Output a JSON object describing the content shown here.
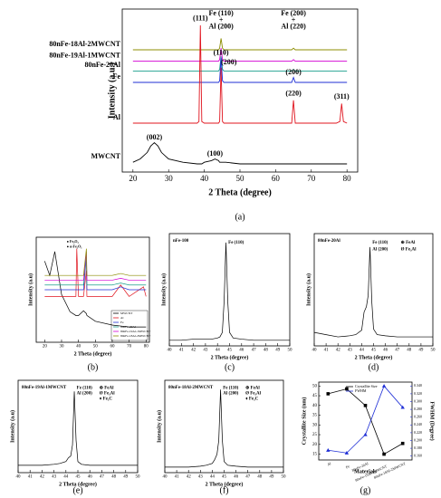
{
  "chart_data": [
    {
      "type": "line",
      "caption": "(a)",
      "x_label": "2 Theta (degree)",
      "y_label": "Intensity (a.u.)",
      "xlim": [
        17,
        83
      ],
      "xticks": [
        20,
        30,
        40,
        50,
        60,
        70,
        80
      ],
      "ylim": [
        0,
        100
      ],
      "x": [
        20,
        22,
        24,
        25,
        26,
        27,
        28,
        30,
        34,
        38,
        38.5,
        38.9,
        39.3,
        40,
        42,
        43,
        44,
        44.3,
        44.7,
        45.1,
        45.5,
        46,
        50,
        55,
        60,
        64.5,
        65,
        65.5,
        70,
        77,
        78,
        78.5,
        79,
        80
      ],
      "series": [
        {
          "name": "80nFe-18Al-2MWCNT",
          "color": "#8c8c00",
          "values": [
            75,
            75,
            75,
            75,
            75,
            75,
            75,
            75,
            75,
            75,
            75,
            75,
            75,
            75,
            75,
            75,
            75,
            76,
            82,
            76,
            75,
            75,
            75,
            75,
            75,
            75,
            76,
            75,
            75,
            75,
            75,
            75,
            75,
            75
          ]
        },
        {
          "name": "80nFe-19Al-1MWCNT",
          "color": "#d400d4",
          "values": [
            68,
            68,
            68,
            68,
            68,
            68,
            68,
            68,
            68,
            68,
            68,
            68,
            68,
            68,
            68,
            68,
            68,
            69,
            76,
            69,
            68,
            68,
            68,
            68,
            68,
            68,
            69,
            68,
            68,
            68,
            68,
            68,
            68,
            68
          ]
        },
        {
          "name": "80nFe-20Al",
          "color": "#1a9e8c",
          "values": [
            62,
            62,
            62,
            62,
            62,
            62,
            62,
            62,
            62,
            62,
            62,
            62,
            62,
            62,
            62,
            62,
            62,
            63,
            71,
            63,
            62,
            62,
            62,
            62,
            62,
            62,
            63,
            62,
            62,
            62,
            62,
            62,
            62,
            62
          ]
        },
        {
          "name": "Fe",
          "color": "#1f2fd6",
          "values": [
            55,
            55,
            55,
            55,
            55,
            55,
            55,
            55,
            55,
            55,
            55,
            55,
            55,
            55,
            55,
            55,
            55,
            56,
            70,
            56,
            55,
            55,
            55,
            55,
            55,
            55,
            58,
            55,
            55,
            55,
            55,
            55,
            55,
            55
          ]
        },
        {
          "name": "Al",
          "color": "#e0141e",
          "values": [
            30,
            30,
            30,
            30,
            30,
            30,
            30,
            30,
            30,
            30,
            31,
            90,
            31,
            30,
            30,
            30,
            30,
            31,
            64,
            31,
            30,
            30,
            30,
            30,
            30,
            30,
            44,
            30,
            30,
            30,
            31,
            42,
            31,
            30
          ]
        },
        {
          "name": "MWCNT",
          "color": "#000000",
          "values": [
            6,
            8,
            12,
            16,
            18,
            16,
            12,
            8,
            6,
            5,
            5,
            5,
            5,
            6,
            7,
            8,
            7,
            6,
            6,
            6,
            6,
            6,
            5,
            5,
            5,
            5,
            5,
            5,
            5,
            5,
            5,
            5,
            5,
            5
          ]
        }
      ],
      "annotations": [
        "(002)",
        "(100)",
        "(111)",
        "(200)",
        "(220)",
        "(311)",
        "(110)",
        "(200)",
        "Fe (110)",
        "+",
        "Al (200)",
        "Fe (200)",
        "+",
        "Al (220)"
      ]
    },
    {
      "type": "line",
      "caption": "(b)",
      "x_label": "2 Theta (degree)",
      "y_label": "Intensity (a.u)",
      "xlim": [
        15,
        82
      ],
      "xticks": [
        20,
        30,
        40,
        50,
        60,
        70,
        80
      ],
      "ylim": [
        0,
        110
      ],
      "x": [
        20,
        23,
        26,
        30,
        35,
        38.5,
        39,
        40,
        43,
        44.7,
        45,
        50,
        60,
        65,
        70,
        78.5,
        80
      ],
      "series": [
        {
          "name": "MWCNT",
          "color": "#000000",
          "values": [
            85,
            70,
            95,
            50,
            32,
            28,
            28,
            28,
            33,
            30,
            28,
            22,
            18,
            17,
            16,
            16,
            16
          ]
        },
        {
          "name": "Al",
          "color": "#e0141e",
          "values": [
            48,
            48,
            48,
            48,
            48,
            48,
            98,
            48,
            48,
            75,
            48,
            48,
            48,
            60,
            48,
            58,
            48
          ]
        },
        {
          "name": "Fe",
          "color": "#1f2fd6",
          "values": [
            55,
            55,
            55,
            55,
            55,
            55,
            55,
            55,
            55,
            90,
            55,
            55,
            55,
            58,
            55,
            55,
            55
          ]
        },
        {
          "name": "80nFe-20Al",
          "color": "#1a9e8c",
          "values": [
            60,
            60,
            60,
            60,
            60,
            60,
            60,
            60,
            60,
            92,
            60,
            60,
            60,
            62,
            60,
            60,
            60
          ]
        },
        {
          "name": "80nFe-19Al-1MWCNT",
          "color": "#d400d4",
          "values": [
            65,
            65,
            65,
            65,
            65,
            65,
            65,
            65,
            65,
            95,
            65,
            65,
            65,
            67,
            65,
            65,
            65
          ]
        },
        {
          "name": "80nFe-18Al-2MWCNT",
          "color": "#8c8c00",
          "values": [
            70,
            70,
            70,
            70,
            70,
            70,
            70,
            70,
            70,
            98,
            70,
            70,
            70,
            72,
            70,
            70,
            70
          ]
        }
      ],
      "annotations": [
        "● Fe₂O₃",
        "● α-Fe₂O₃"
      ]
    },
    {
      "type": "line",
      "caption": "(c)",
      "x_label": "2 Theta (degree)",
      "y_label": "Intensity (a.u)",
      "xlim": [
        40,
        50
      ],
      "xticks": [
        40,
        41,
        42,
        43,
        44,
        45,
        46,
        47,
        48,
        49,
        50
      ],
      "ylim": [
        0,
        100
      ],
      "x": [
        40,
        41,
        42,
        43,
        43.5,
        44,
        44.2,
        44.4,
        44.55,
        44.7,
        44.85,
        45,
        45.3,
        46,
        47,
        48,
        49,
        50
      ],
      "series": [
        {
          "name": "nFe-100",
          "color": "#000000",
          "values": [
            5,
            5,
            6,
            6,
            6,
            7,
            8,
            12,
            40,
            92,
            40,
            12,
            7,
            6,
            5,
            5,
            5,
            5
          ]
        }
      ],
      "annotations": [
        "Fe (110)"
      ]
    },
    {
      "type": "line",
      "caption": "(d)",
      "x_label": "2 Theta (degree)",
      "y_label": "Intensity (a.u)",
      "xlim": [
        40,
        50
      ],
      "xticks": [
        40,
        41,
        42,
        43,
        44,
        45,
        46,
        47,
        48,
        49,
        50
      ],
      "ylim": [
        0,
        100
      ],
      "x": [
        40,
        41,
        42,
        43,
        43.5,
        44,
        44.2,
        44.4,
        44.55,
        44.7,
        44.85,
        45,
        45.3,
        46,
        47,
        48,
        49,
        50
      ],
      "series": [
        {
          "name": "80nFe-20Al",
          "color": "#000000",
          "values": [
            12,
            10,
            8,
            9,
            10,
            14,
            30,
            35,
            45,
            88,
            40,
            15,
            10,
            9,
            8,
            8,
            8,
            8
          ]
        }
      ],
      "annotations": [
        "Fe (110)",
        "Al (200)",
        "⊕ FeAl",
        "Ø Fe₃Al"
      ]
    },
    {
      "type": "line",
      "caption": "(e)",
      "x_label": "2 Theta (degree)",
      "y_label": "Intensity (a.u)",
      "xlim": [
        40,
        50
      ],
      "xticks": [
        40,
        41,
        42,
        43,
        44,
        45,
        46,
        47,
        48,
        49,
        50
      ],
      "ylim": [
        0,
        100
      ],
      "x": [
        40,
        41,
        42,
        43,
        43.5,
        44,
        44.2,
        44.4,
        44.55,
        44.7,
        44.85,
        45,
        45.3,
        46,
        47,
        48,
        49,
        50
      ],
      "series": [
        {
          "name": "80nFe-19Al-1MWCNT",
          "color": "#000000",
          "values": [
            8,
            8,
            8,
            9,
            10,
            12,
            16,
            18,
            30,
            88,
            35,
            12,
            9,
            8,
            8,
            8,
            8,
            8
          ]
        }
      ],
      "annotations": [
        "Fe (110)",
        "Al (200)",
        "⊕ FeAl",
        "Ø Fe₃Al",
        "♦ Fe₃C"
      ]
    },
    {
      "type": "line",
      "caption": "(f)",
      "x_label": "2 Theta (degree)",
      "y_label": "Intensity (a.u)",
      "xlim": [
        40,
        50
      ],
      "xticks": [
        40,
        41,
        42,
        43,
        44,
        45,
        46,
        47,
        48,
        49,
        50
      ],
      "ylim": [
        0,
        100
      ],
      "x": [
        40,
        41,
        42,
        43,
        43.5,
        44,
        44.2,
        44.4,
        44.55,
        44.7,
        44.85,
        45,
        45.3,
        46,
        47,
        48,
        49,
        50
      ],
      "series": [
        {
          "name": "80nFe-18Al-2MWCNT",
          "color": "#000000",
          "values": [
            6,
            6,
            6,
            7,
            8,
            10,
            14,
            20,
            35,
            90,
            35,
            12,
            8,
            7,
            6,
            6,
            6,
            6
          ]
        }
      ],
      "annotations": [
        "Fe (110)",
        "Al (200)",
        "⊕ FeAl",
        "Ø Fe₃Al",
        "♦ Fe₃C"
      ]
    },
    {
      "type": "line",
      "caption": "(g)",
      "x_label": "Materials",
      "y_label": "Crystallite Size (nm)",
      "y2_label": "FWHM (Degree)",
      "categories": [
        "Al",
        "Fe",
        "80nFe-20Al",
        "80nFe-19Al-1MWCNT",
        "80nFe-18Al-2MWCNT"
      ],
      "ylim": [
        12,
        52
      ],
      "yticks": [
        15,
        20,
        25,
        30,
        35,
        40,
        45,
        50
      ],
      "y2lim": [
        0.15,
        0.35
      ],
      "y2ticks": [
        {
          "value": 0.16,
          "label": "0.160"
        },
        {
          "value": 0.18,
          "label": "0.180"
        },
        {
          "value": 0.2,
          "label": "0.200"
        },
        {
          "value": 0.22,
          "label": "0.220"
        },
        {
          "value": 0.24,
          "label": "0.240"
        },
        {
          "value": 0.26,
          "label": "0.260"
        },
        {
          "value": 0.28,
          "label": "0.280"
        },
        {
          "value": 0.3,
          "label": "0.300"
        },
        {
          "value": 0.32,
          "label": "0.320"
        },
        {
          "value": 0.34,
          "label": "0.340"
        }
      ],
      "series": [
        {
          "name": "Crystallite Size",
          "color": "#000000",
          "values": [
            46,
            48.5,
            40,
            15,
            20.5
          ]
        },
        {
          "name": "FWHM",
          "color": "#1f2fd6",
          "axis": "y2",
          "values": [
            0.175,
            0.168,
            0.215,
            0.34,
            0.285
          ]
        }
      ]
    }
  ]
}
